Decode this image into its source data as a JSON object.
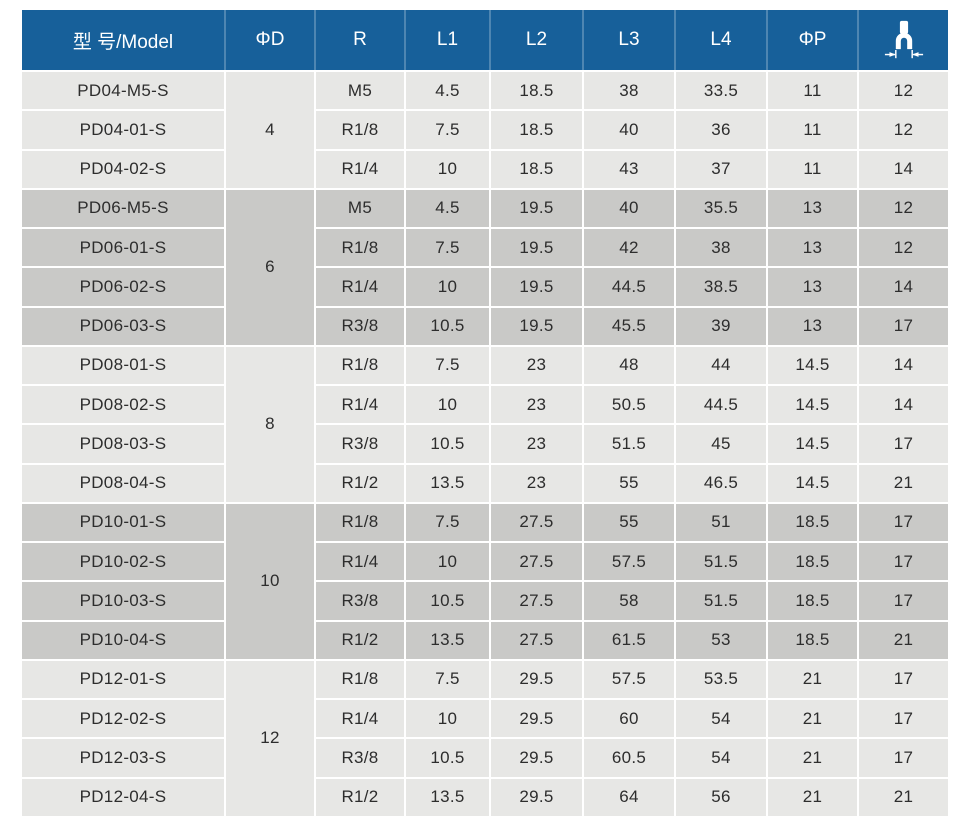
{
  "page": {
    "background": "#ffffff"
  },
  "colors": {
    "header_bg": "#17609a",
    "header_divider": "#4e86b2",
    "header_text": "#ffffff",
    "group_light_bg": "#e7e7e5",
    "group_dark_bg": "#c9c9c7",
    "cell_text": "#2d2d2d",
    "grid_line": "#ffffff"
  },
  "icons": {
    "wrench_column_icon": "wrench-width-icon"
  },
  "chart_data": {
    "type": "table",
    "columns": [
      "型 号/Model",
      "ΦD",
      "R",
      "L1",
      "L2",
      "L3",
      "L4",
      "ΦP",
      "wrench-size"
    ],
    "groups": [
      {
        "phi_d": "4",
        "shade": "light",
        "rows": [
          [
            "PD04-M5-S",
            "M5",
            "4.5",
            "18.5",
            "38",
            "33.5",
            "11",
            "12"
          ],
          [
            "PD04-01-S",
            "R1/8",
            "7.5",
            "18.5",
            "40",
            "36",
            "11",
            "12"
          ],
          [
            "PD04-02-S",
            "R1/4",
            "10",
            "18.5",
            "43",
            "37",
            "11",
            "14"
          ]
        ]
      },
      {
        "phi_d": "6",
        "shade": "dark",
        "rows": [
          [
            "PD06-M5-S",
            "M5",
            "4.5",
            "19.5",
            "40",
            "35.5",
            "13",
            "12"
          ],
          [
            "PD06-01-S",
            "R1/8",
            "7.5",
            "19.5",
            "42",
            "38",
            "13",
            "12"
          ],
          [
            "PD06-02-S",
            "R1/4",
            "10",
            "19.5",
            "44.5",
            "38.5",
            "13",
            "14"
          ],
          [
            "PD06-03-S",
            "R3/8",
            "10.5",
            "19.5",
            "45.5",
            "39",
            "13",
            "17"
          ]
        ]
      },
      {
        "phi_d": "8",
        "shade": "light",
        "rows": [
          [
            "PD08-01-S",
            "R1/8",
            "7.5",
            "23",
            "48",
            "44",
            "14.5",
            "14"
          ],
          [
            "PD08-02-S",
            "R1/4",
            "10",
            "23",
            "50.5",
            "44.5",
            "14.5",
            "14"
          ],
          [
            "PD08-03-S",
            "R3/8",
            "10.5",
            "23",
            "51.5",
            "45",
            "14.5",
            "17"
          ],
          [
            "PD08-04-S",
            "R1/2",
            "13.5",
            "23",
            "55",
            "46.5",
            "14.5",
            "21"
          ]
        ]
      },
      {
        "phi_d": "10",
        "shade": "dark",
        "rows": [
          [
            "PD10-01-S",
            "R1/8",
            "7.5",
            "27.5",
            "55",
            "51",
            "18.5",
            "17"
          ],
          [
            "PD10-02-S",
            "R1/4",
            "10",
            "27.5",
            "57.5",
            "51.5",
            "18.5",
            "17"
          ],
          [
            "PD10-03-S",
            "R3/8",
            "10.5",
            "27.5",
            "58",
            "51.5",
            "18.5",
            "17"
          ],
          [
            "PD10-04-S",
            "R1/2",
            "13.5",
            "27.5",
            "61.5",
            "53",
            "18.5",
            "21"
          ]
        ]
      },
      {
        "phi_d": "12",
        "shade": "light",
        "rows": [
          [
            "PD12-01-S",
            "R1/8",
            "7.5",
            "29.5",
            "57.5",
            "53.5",
            "21",
            "17"
          ],
          [
            "PD12-02-S",
            "R1/4",
            "10",
            "29.5",
            "60",
            "54",
            "21",
            "17"
          ],
          [
            "PD12-03-S",
            "R3/8",
            "10.5",
            "29.5",
            "60.5",
            "54",
            "21",
            "17"
          ],
          [
            "PD12-04-S",
            "R1/2",
            "13.5",
            "29.5",
            "64",
            "56",
            "21",
            "21"
          ]
        ]
      }
    ]
  }
}
